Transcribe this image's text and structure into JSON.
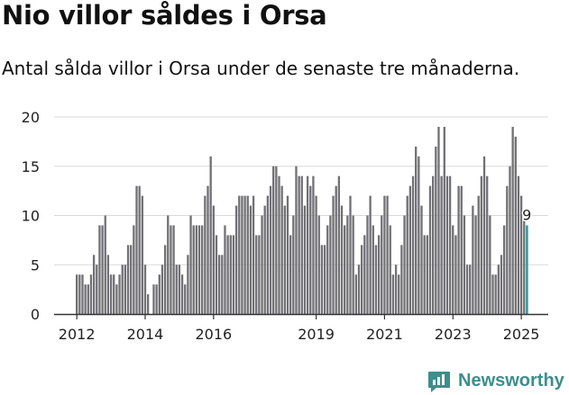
{
  "title": "Nio villor såldes i Orsa",
  "subtitle": "Antal sålda villor i Orsa under de senaste tre månaderna.",
  "brand": {
    "name": "Newsworthy",
    "icon": "newsworthy-logo-icon"
  },
  "colors": {
    "bar": "#707075",
    "highlight": "#2a9d99",
    "grid": "#d9d9d9",
    "axis": "#333333"
  },
  "chart_data": {
    "type": "bar",
    "title": "Nio villor såldes i Orsa",
    "xlabel": "",
    "ylabel": "",
    "ylim": [
      0,
      20
    ],
    "yticks": [
      0,
      5,
      10,
      15,
      20
    ],
    "xticks": [
      {
        "label": "2012",
        "index": 0
      },
      {
        "label": "2014",
        "index": 24
      },
      {
        "label": "2016",
        "index": 48
      },
      {
        "label": "2019",
        "index": 84
      },
      {
        "label": "2021",
        "index": 108
      },
      {
        "label": "2023",
        "index": 132
      },
      {
        "label": "2025",
        "index": 156
      }
    ],
    "grid": true,
    "start": "2012-01",
    "frequency": "monthly",
    "values": [
      4,
      4,
      4,
      3,
      3,
      4,
      6,
      5,
      9,
      9,
      10,
      6,
      4,
      4,
      3,
      4,
      5,
      5,
      7,
      7,
      9,
      13,
      13,
      12,
      5,
      2,
      0,
      3,
      3,
      4,
      5,
      7,
      10,
      9,
      9,
      5,
      5,
      4,
      3,
      6,
      10,
      9,
      9,
      9,
      9,
      12,
      13,
      16,
      11,
      8,
      6,
      6,
      9,
      8,
      8,
      8,
      11,
      12,
      12,
      12,
      12,
      11,
      12,
      8,
      8,
      10,
      11,
      12,
      13,
      15,
      15,
      14,
      13,
      11,
      12,
      8,
      10,
      15,
      14,
      14,
      11,
      14,
      13,
      14,
      12,
      10,
      7,
      7,
      9,
      10,
      12,
      13,
      14,
      11,
      9,
      10,
      12,
      10,
      4,
      5,
      7,
      8,
      10,
      12,
      9,
      7,
      8,
      10,
      12,
      12,
      9,
      4,
      5,
      4,
      7,
      10,
      12,
      13,
      14,
      17,
      16,
      11,
      8,
      8,
      13,
      14,
      17,
      19,
      14,
      19,
      14,
      14,
      9,
      8,
      13,
      13,
      10,
      5,
      5,
      11,
      10,
      12,
      14,
      16,
      14,
      10,
      4,
      4,
      5,
      6,
      9,
      13,
      15,
      19,
      18,
      14,
      12,
      10,
      9
    ],
    "highlight": {
      "index": 158,
      "value": 9,
      "label": "9"
    }
  }
}
